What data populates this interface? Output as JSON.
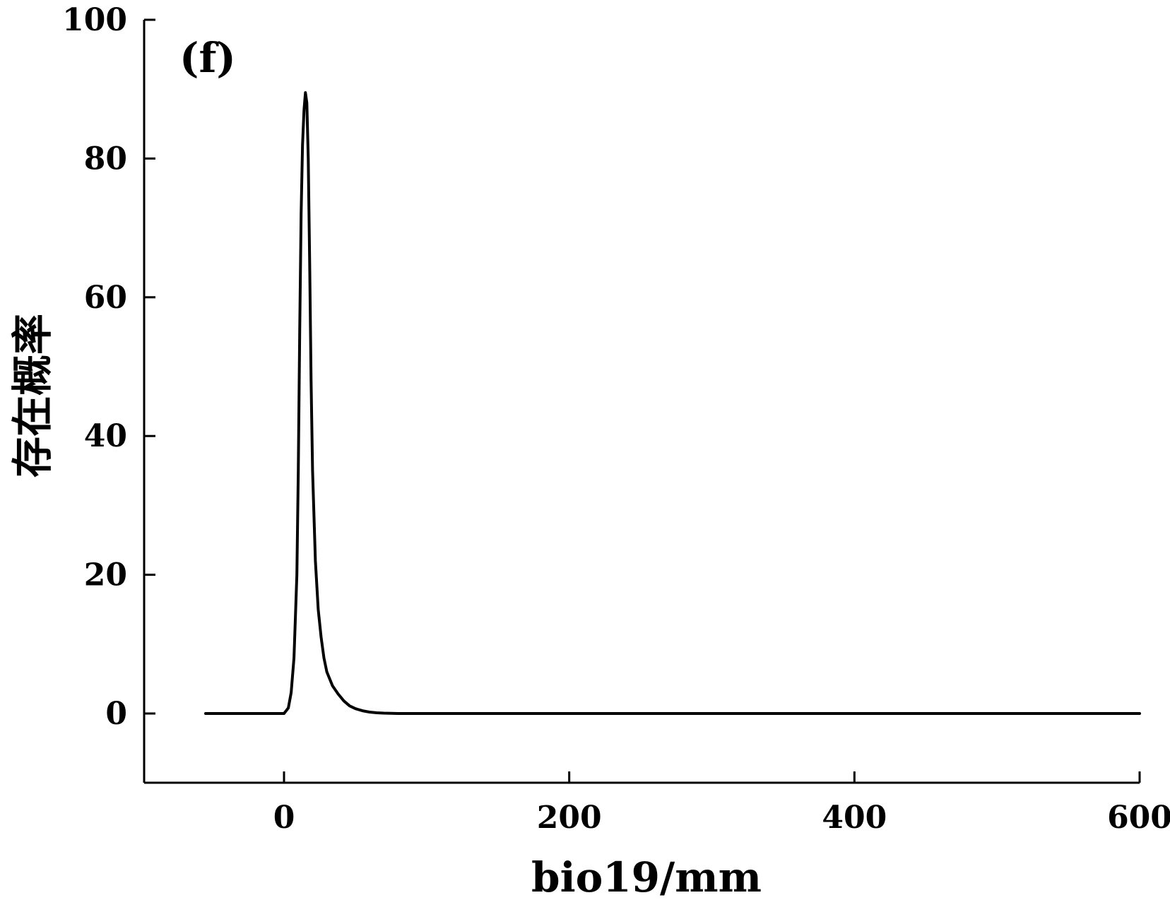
{
  "chart_data": {
    "type": "line",
    "panel_label": "(f)",
    "title": "",
    "xlabel": "bio19/mm",
    "ylabel": "存在概率",
    "xlim": [
      -50,
      600
    ],
    "ylim": [
      -10,
      100
    ],
    "xticks": [
      0,
      200,
      400,
      600
    ],
    "yticks": [
      0,
      20,
      40,
      60,
      80,
      100
    ],
    "grid": false,
    "series": [
      {
        "x": [
          -55,
          -20,
          0,
          3,
          5,
          7,
          9,
          10,
          11,
          12,
          13,
          14,
          15,
          16,
          17,
          18,
          19,
          20,
          22,
          24,
          26,
          28,
          30,
          34,
          38,
          42,
          46,
          50,
          55,
          60,
          65,
          70,
          80,
          100,
          150,
          200,
          300,
          400,
          500,
          600
        ],
        "y": [
          0,
          0,
          0,
          0.8,
          3,
          8,
          20,
          35,
          55,
          72,
          82,
          87,
          89.5,
          88,
          80,
          65,
          48,
          35,
          22,
          15,
          11,
          8,
          6,
          4,
          2.8,
          1.8,
          1.1,
          0.7,
          0.4,
          0.2,
          0.1,
          0.05,
          0,
          0,
          0,
          0,
          0,
          0,
          0,
          0
        ],
        "color": "#000000"
      }
    ]
  }
}
